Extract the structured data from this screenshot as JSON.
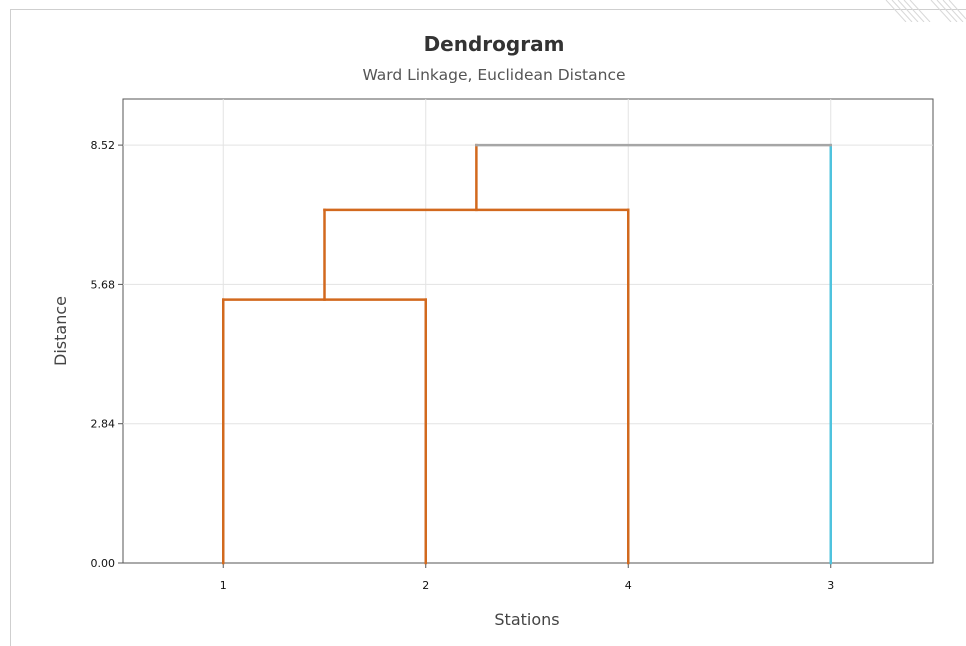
{
  "chart_data": {
    "type": "dendrogram",
    "title": "Dendrogram",
    "subtitle": "Ward Linkage, Euclidean Distance",
    "xlabel": "Stations",
    "ylabel": "Distance",
    "leaf_order": [
      "1",
      "2",
      "4",
      "3"
    ],
    "y_ticks": [
      "0.00",
      "2.84",
      "5.68",
      "8.52"
    ],
    "ylim": [
      0,
      9.46
    ],
    "grid": true,
    "merges": [
      {
        "left": "1",
        "right": "2",
        "distance": 5.37,
        "color": "#D2691E"
      },
      {
        "left": "1-2",
        "right": "4",
        "distance": 7.2,
        "color": "#D2691E"
      },
      {
        "left": "1-2-4",
        "right": "3",
        "distance": 8.52,
        "color": "#A6A6A6"
      }
    ],
    "leaf_colors": {
      "1": "#D2691E",
      "2": "#D2691E",
      "4": "#D2691E",
      "3": "#4FC3DE"
    }
  }
}
